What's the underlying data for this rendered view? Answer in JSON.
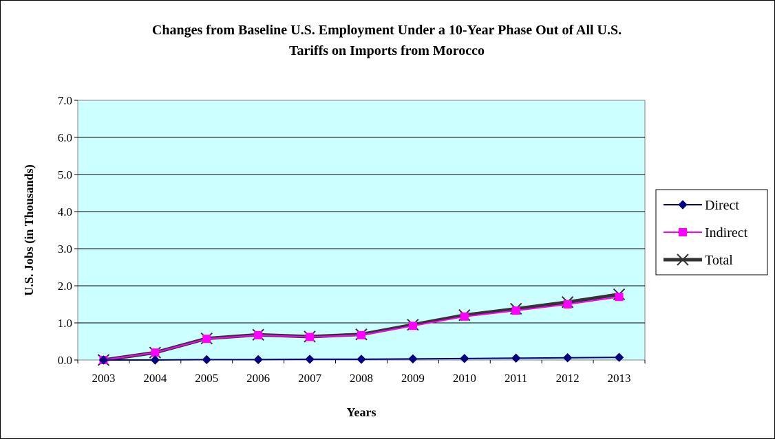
{
  "chart_data": {
    "type": "line",
    "title_line1": "Changes from Baseline U.S. Employment Under a 10-Year Phase Out of All U.S.",
    "title_line2": "Tariffs on Imports from Morocco",
    "xlabel": "Years",
    "ylabel": "U.S. Jobs (in Thousands)",
    "categories": [
      "2003",
      "2004",
      "2005",
      "2006",
      "2007",
      "2008",
      "2009",
      "2010",
      "2011",
      "2012",
      "2013"
    ],
    "ylim": [
      0,
      7
    ],
    "yticks": [
      "0.0",
      "1.0",
      "2.0",
      "3.0",
      "4.0",
      "5.0",
      "6.0",
      "7.0"
    ],
    "plot_background": "#ccffff",
    "grid": true,
    "legend_position": "right",
    "series": [
      {
        "name": "Direct",
        "color": "#000080",
        "marker": "diamond",
        "values": [
          0.0,
          0.0,
          0.01,
          0.01,
          0.02,
          0.02,
          0.03,
          0.04,
          0.05,
          0.06,
          0.07
        ]
      },
      {
        "name": "Indirect",
        "color": "#ff00ff",
        "marker": "square",
        "values": [
          0.0,
          0.2,
          0.57,
          0.67,
          0.62,
          0.67,
          0.92,
          1.17,
          1.33,
          1.5,
          1.7
        ]
      },
      {
        "name": "Total",
        "color": "#333333",
        "marker": "x",
        "values": [
          0.0,
          0.2,
          0.58,
          0.68,
          0.63,
          0.69,
          0.95,
          1.21,
          1.38,
          1.56,
          1.77
        ]
      }
    ]
  }
}
